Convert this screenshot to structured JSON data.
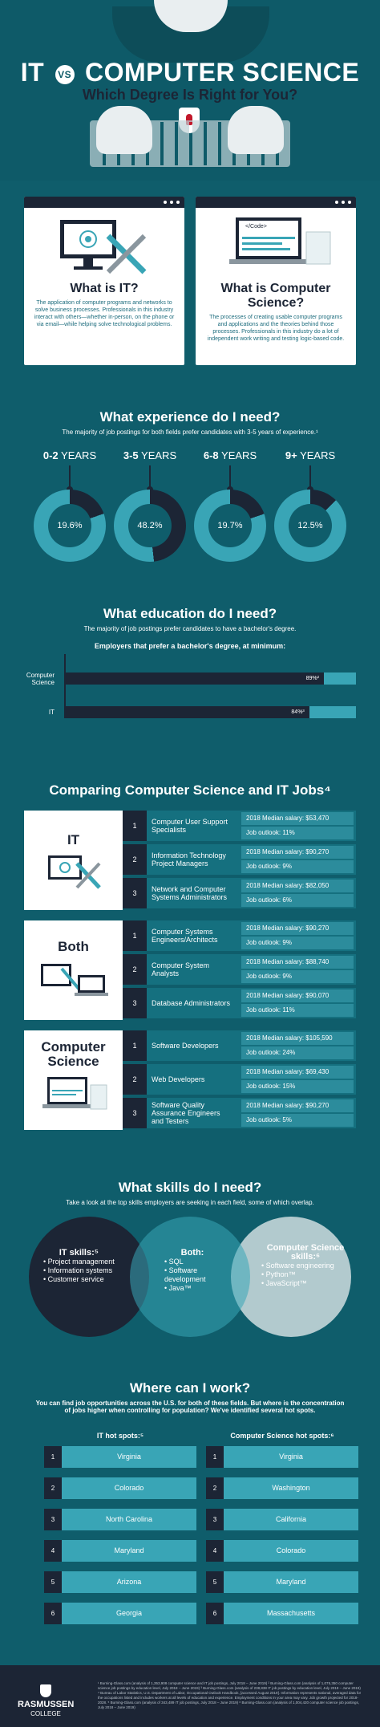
{
  "header": {
    "title_left": "IT",
    "vs": "VS",
    "title_right": "COMPUTER SCIENCE",
    "subtitle": "Which Degree Is Right for You?"
  },
  "cards": {
    "it": {
      "code_tag": "",
      "title": "What is IT?",
      "text": "The application of computer programs and networks to solve business processes. Professionals in this industry interact with others—whether in-person, on the phone or via email—while helping solve technological problems."
    },
    "cs": {
      "code_tag": "</Code>",
      "title": "What is Computer Science?",
      "text": "The processes of creating usable computer programs and applications and the theories behind those processes. Professionals in this industry do a lot of independent work writing and testing logic-based code."
    }
  },
  "experience": {
    "title": "What experience do I need?",
    "note": "The majority of job postings for both fields prefer candidates with 3-5 years of experience.¹",
    "items": [
      {
        "range_num": "0-2",
        "range_unit": "YEARS",
        "pct_label": "19.6%",
        "pct": 19.6
      },
      {
        "range_num": "3-5",
        "range_unit": "YEARS",
        "pct_label": "48.2%",
        "pct": 48.2
      },
      {
        "range_num": "6-8",
        "range_unit": "YEARS",
        "pct_label": "19.7%",
        "pct": 19.7
      },
      {
        "range_num": "9+",
        "range_unit": "YEARS",
        "pct_label": "12.5%",
        "pct": 12.5
      }
    ]
  },
  "education": {
    "title": "What education do I need?",
    "note": "The majority of job postings prefer candidates to have a bachelor's degree.",
    "subtitle": "Employers that prefer a bachelor's degree, at minimum:",
    "bars": [
      {
        "label": "Computer Science",
        "value_label": "89%²",
        "pct": 89
      },
      {
        "label": "IT",
        "value_label": "84%³",
        "pct": 84
      }
    ]
  },
  "comparing": {
    "title": "Comparing Computer Science and IT Jobs⁴",
    "groups": [
      {
        "name": "IT",
        "jobs": [
          {
            "num": "1",
            "job": "Computer User Support Specialists",
            "salary": "2018 Median salary: $53,470",
            "outlook": "Job outlook: 11%"
          },
          {
            "num": "2",
            "job": "Information Technology Project Managers",
            "salary": "2018 Median salary: $90,270",
            "outlook": "Job outlook: 9%"
          },
          {
            "num": "3",
            "job": "Network and Computer Systems Administrators",
            "salary": "2018 Median salary: $82,050",
            "outlook": "Job outlook: 6%"
          }
        ]
      },
      {
        "name": "Both",
        "jobs": [
          {
            "num": "1",
            "job": "Computer Systems Engineers/Architects",
            "salary": "2018 Median salary: $90,270",
            "outlook": "Job outlook: 9%"
          },
          {
            "num": "2",
            "job": "Computer System Analysts",
            "salary": "2018 Median salary: $88,740",
            "outlook": "Job outlook: 9%"
          },
          {
            "num": "3",
            "job": "Database Administrators",
            "salary": "2018 Median salary: $90,070",
            "outlook": "Job outlook: 11%"
          }
        ]
      },
      {
        "name": "Computer Science",
        "jobs": [
          {
            "num": "1",
            "job": "Software Developers",
            "salary": "2018 Median salary: $105,590",
            "outlook": "Job outlook: 24%"
          },
          {
            "num": "2",
            "job": "Web Developers",
            "salary": "2018 Median salary: $69,430",
            "outlook": "Job outlook: 15%"
          },
          {
            "num": "3",
            "job": "Software Quality Assurance Engineers and Testers",
            "salary": "2018 Median salary: $90,270",
            "outlook": "Job outlook: 5%"
          }
        ]
      }
    ]
  },
  "skills": {
    "title": "What skills do I need?",
    "note": "Take a look at the top skills employers are seeking in each field, some of which overlap.",
    "it": {
      "title": "IT skills:⁵",
      "items": [
        "• Project management",
        "• Information systems",
        "• Customer service"
      ]
    },
    "both": {
      "title": "Both:",
      "items": [
        "• SQL",
        "• Software development",
        "• Java™"
      ]
    },
    "cs": {
      "title": "Computer Science skills:⁶",
      "items": [
        "• Software engineering",
        "• Python™",
        "• JavaScript™"
      ]
    }
  },
  "where": {
    "title": "Where can I work?",
    "note": "You can find job opportunities across the U.S. for both of these fields. But where is the concentration of jobs higher when controlling for population? We've identified several hot spots.",
    "it": {
      "title": "IT hot spots:⁵",
      "items": [
        "Virginia",
        "Colorado",
        "North Carolina",
        "Maryland",
        "Arizona",
        "Georgia"
      ]
    },
    "cs": {
      "title": "Computer Science hot spots:⁶",
      "items": [
        "Virginia",
        "Washington",
        "California",
        "Colorado",
        "Maryland",
        "Massachusetts"
      ]
    }
  },
  "footer": {
    "brand": "RASMUSSEN",
    "brand_sub": "COLLEGE",
    "footnotes": "¹ Burning-Glass.com (analysis of 1,353,908 computer science and IT job postings, July 2018 – June 2019) ² Burning-Glass.com (analysis of 1,075,350 computer science job postings by education level, July 2018 – June 2019) ³ Burning-Glass.com (analysis of 238,838 IT job postings by education level, July 2018 – June 2019) ⁴ Bureau of Labor Statistics, U.S. Department of Labor, Occupational Outlook Handbook, [accessed August 2019]. Information represents national, averaged data for the occupations listed and includes workers at all levels of education and experience. Employment conditions in your area may vary. Job growth projected for 2018-2028. ⁵ Burning-Glass.com (analysis of 343,489 IT job postings, July 2018 – June 2019) ⁶ Burning-Glass.com (analysis of 1,004,420 computer science job postings, July 2018 – June 2019)"
  },
  "colors": {
    "bg": "#0f5d6b",
    "navy": "#1c2535",
    "teal_light": "#39a5b6",
    "brand_red": "#c2182b"
  }
}
